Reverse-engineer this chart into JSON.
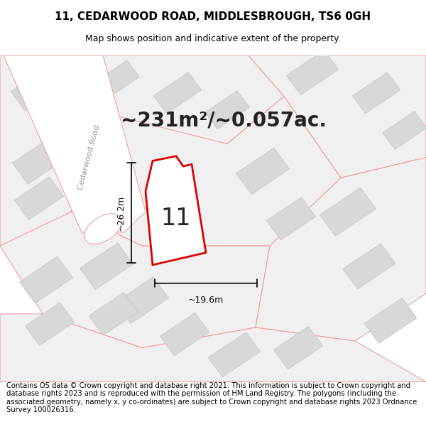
{
  "title": "11, CEDARWOOD ROAD, MIDDLESBROUGH, TS6 0GH",
  "subtitle": "Map shows position and indicative extent of the property.",
  "area_label": "~231m²/~0.057ac.",
  "dim_horizontal": "~19.6m",
  "dim_vertical": "~26.2m",
  "number_label": "11",
  "road_label": "Cedarwood Road",
  "footer": "Contains OS data © Crown copyright and database right 2021. This information is subject to Crown copyright and database rights 2023 and is reproduced with the permission of HM Land Registry. The polygons (including the associated geometry, namely x, y co-ordinates) are subject to Crown copyright and database rights 2023 Ordnance Survey 100026316.",
  "map_bg": "#f5f5f5",
  "parcel_fill": "#e8e8e8",
  "parcel_edge": "#f0a0a0",
  "building_fill": "#d8d8d8",
  "building_edge": "#c8c8c8",
  "highlight_fill": "#ffffff",
  "highlight_edge": "#dd0000",
  "road_bg": "#ffffff",
  "road_label_color": "#999999",
  "title_fontsize": 11,
  "subtitle_fontsize": 9,
  "area_fontsize": 20,
  "number_fontsize": 24,
  "footer_fontsize": 7.2
}
